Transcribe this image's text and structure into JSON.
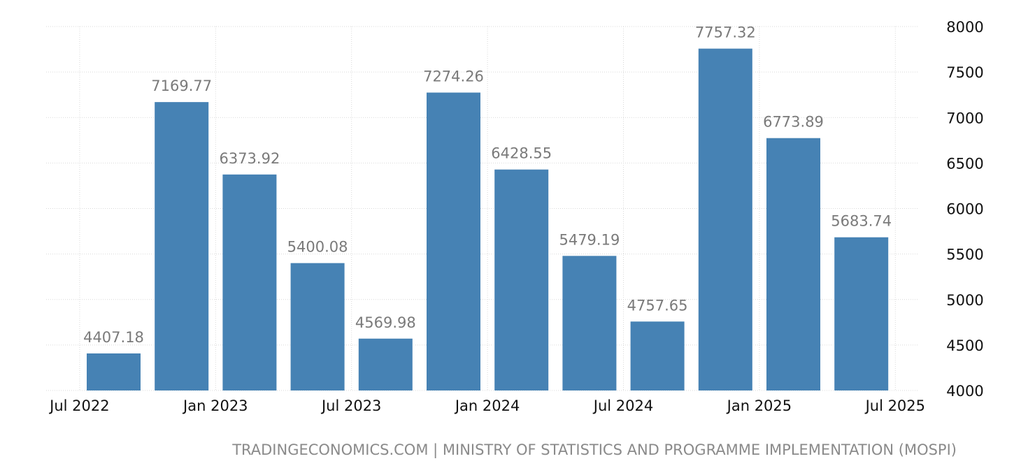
{
  "chart_data": {
    "type": "bar",
    "title": "",
    "xlabel": "",
    "ylabel": "",
    "categories": [
      "Oct 2022",
      "Jan 2023",
      "Apr 2023",
      "Jul 2023",
      "Oct 2023",
      "Jan 2024",
      "Apr 2024",
      "Jul 2024",
      "Oct 2024",
      "Jan 2025",
      "Apr 2025",
      "Jul 2025"
    ],
    "values": [
      4407.18,
      7169.77,
      6373.92,
      5400.08,
      4569.98,
      7274.26,
      6428.55,
      5479.19,
      4757.65,
      7757.32,
      6773.89,
      5683.74
    ],
    "value_labels": [
      "4407.18",
      "7169.77",
      "6373.92",
      "5400.08",
      "4569.98",
      "7274.26",
      "6428.55",
      "5479.19",
      "4757.65",
      "7757.32",
      "6773.89",
      "5683.74"
    ],
    "ylim": [
      4000,
      8000
    ],
    "y_ticks": [
      "4000",
      "4500",
      "5000",
      "5500",
      "6000",
      "6500",
      "7000",
      "7500",
      "8000"
    ],
    "y_axis_side": "right",
    "x_ticks": [
      {
        "label": "Jul 2022",
        "index": -1
      },
      {
        "label": "Jan 2023",
        "index": 1
      },
      {
        "label": "Jul 2023",
        "index": 3
      },
      {
        "label": "Jan 2024",
        "index": 5
      },
      {
        "label": "Jul 2024",
        "index": 7
      },
      {
        "label": "Jan 2025",
        "index": 9
      },
      {
        "label": "Jul 2025",
        "index": 11
      }
    ],
    "grid": true,
    "bar_color": "#4682b4"
  },
  "footer": {
    "source": "TRADINGECONOMICS.COM | MINISTRY OF STATISTICS AND PROGRAMME IMPLEMENTATION (MOSPI)"
  }
}
